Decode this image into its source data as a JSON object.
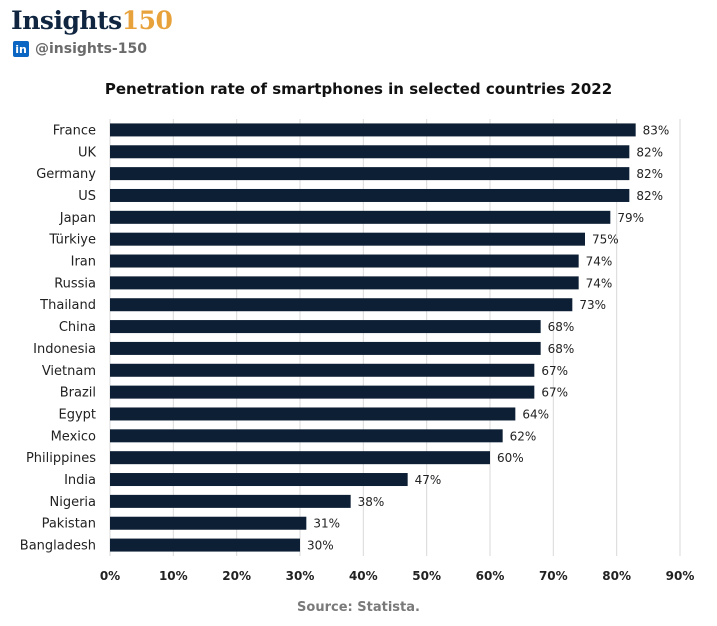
{
  "header": {
    "brand_text": "Insights",
    "brand_number": "150",
    "handle": "@insights-150",
    "linkedin_glyph": "in",
    "icon": "linkedin-icon"
  },
  "footer": {
    "source": "Source: Statista."
  },
  "colors": {
    "bar": "#0d1f35",
    "grid": "#d9d9d9",
    "brand_accent": "#e8a23c",
    "linkedin": "#0a66c2"
  },
  "chart_data": {
    "type": "bar",
    "orientation": "horizontal",
    "title": "Penetration rate of smartphones in selected countries 2022",
    "categories": [
      "France",
      "UK",
      "Germany",
      "US",
      "Japan",
      "Türkiye",
      "Iran",
      "Russia",
      "Thailand",
      "China",
      "Indonesia",
      "Vietnam",
      "Brazil",
      "Egypt",
      "Mexico",
      "Philippines",
      "India",
      "Nigeria",
      "Pakistan",
      "Bangladesh"
    ],
    "values": [
      83,
      82,
      82,
      82,
      79,
      75,
      74,
      74,
      73,
      68,
      68,
      67,
      67,
      64,
      62,
      60,
      47,
      38,
      31,
      30
    ],
    "value_labels": [
      "83%",
      "82%",
      "82%",
      "82%",
      "79%",
      "75%",
      "74%",
      "74%",
      "73%",
      "68%",
      "68%",
      "67%",
      "67%",
      "64%",
      "62%",
      "60%",
      "47%",
      "38%",
      "31%",
      "30%"
    ],
    "xlim": [
      0,
      90
    ],
    "x_ticks": [
      "0%",
      "10%",
      "20%",
      "30%",
      "40%",
      "50%",
      "60%",
      "70%",
      "80%",
      "90%"
    ],
    "grid": true,
    "legend": "none"
  }
}
